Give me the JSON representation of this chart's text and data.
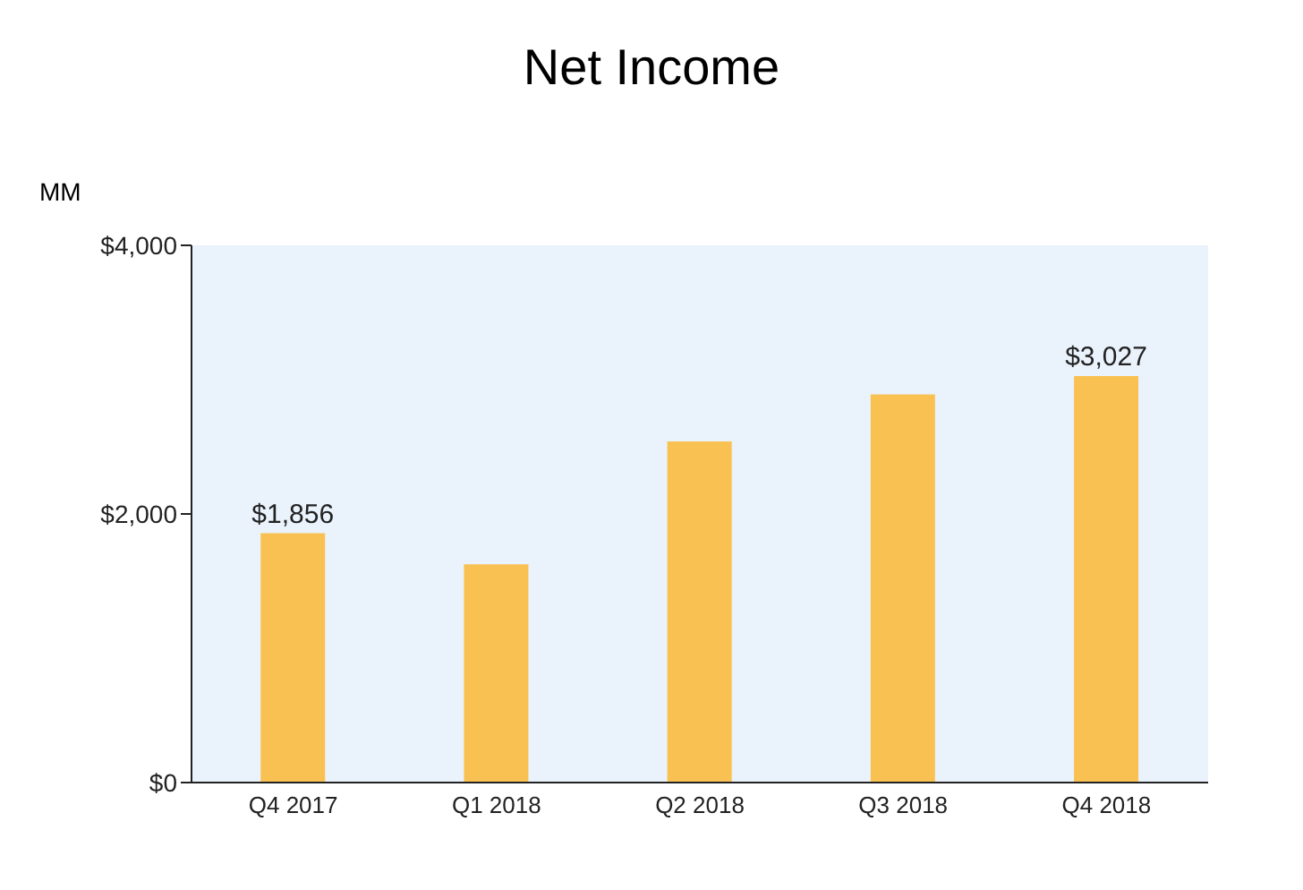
{
  "chart_data": {
    "type": "bar",
    "title": "Net Income",
    "ylabel": "MM",
    "categories": [
      "Q4 2017",
      "Q1 2018",
      "Q2 2018",
      "Q3 2018",
      "Q4 2018"
    ],
    "values": [
      1856,
      1625,
      2540,
      2890,
      3027
    ],
    "value_labels": [
      "$1,856",
      null,
      null,
      null,
      "$3,027"
    ],
    "color": "#f9c152",
    "ylim": [
      0,
      4000
    ],
    "yticks": [
      {
        "value": 0,
        "label": "$0"
      },
      {
        "value": 2000,
        "label": "$2,000"
      },
      {
        "value": 4000,
        "label": "$4,000"
      }
    ],
    "grid": false,
    "legend": false
  }
}
